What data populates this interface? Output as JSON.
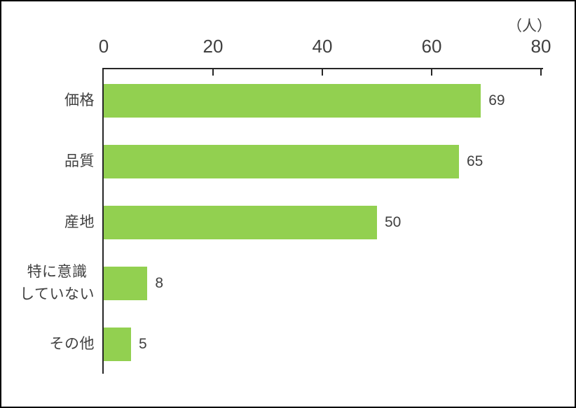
{
  "chart_data": {
    "type": "bar",
    "orientation": "horizontal",
    "title": "",
    "unit_label": "（人）",
    "categories": [
      "価格",
      "品質",
      "産地",
      "特に意識\nしていない",
      "その他"
    ],
    "values": [
      69,
      65,
      50,
      8,
      5
    ],
    "xlim": [
      0,
      80
    ],
    "x_ticks": [
      0,
      20,
      40,
      60,
      80
    ],
    "axis_position": "top",
    "grid": false,
    "legend": false,
    "bar_color": "#92d050",
    "axis_color": "#262626",
    "text_color": "#404040",
    "frame_color": "#000000"
  }
}
